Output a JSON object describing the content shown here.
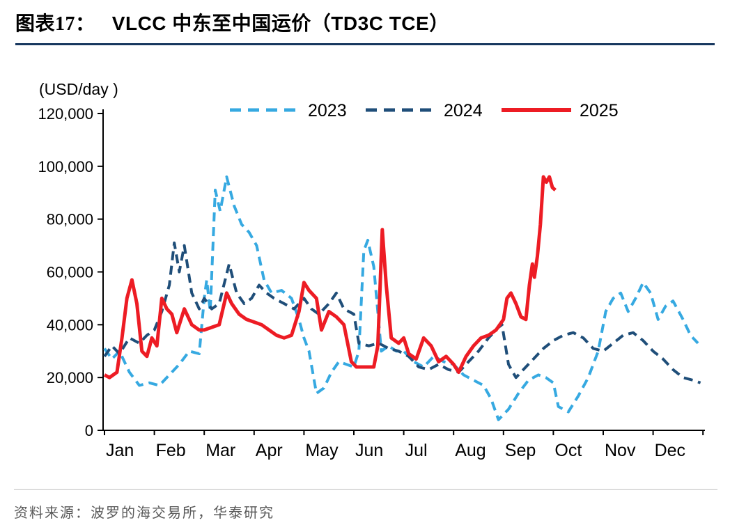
{
  "header": {
    "figure_label": "图表17：",
    "title": "VLCC 中东至中国运价（TD3C TCE）",
    "rule_color": "#17375E"
  },
  "chart_data": {
    "type": "line",
    "title": "VLCC 中东至中国运价（TD3C TCE）",
    "unit_label": "(USD/day )",
    "xlabel": "",
    "ylabel": "(USD/day )",
    "grid": false,
    "legend_position": "top",
    "x_unit": "fractional month, 0 = Jan 1, 12 = Dec 31",
    "x_axis": {
      "labels": [
        "Jan",
        "Feb",
        "Mar",
        "Apr",
        "May",
        "Jun",
        "Jul",
        "Aug",
        "Sep",
        "Oct",
        "Nov",
        "Dec"
      ],
      "range": [
        0,
        12
      ]
    },
    "y_axis": {
      "min": 0,
      "max": 120000,
      "tick_step": 20000,
      "tick_labels": [
        "0",
        "20,000",
        "40,000",
        "60,000",
        "80,000",
        "100,000",
        "120,000"
      ]
    },
    "series": [
      {
        "name": "2023",
        "color": "#36A9E1",
        "style": "dashed",
        "points": [
          [
            0,
            31000
          ],
          [
            0.15,
            27000
          ],
          [
            0.3,
            30000
          ],
          [
            0.5,
            22000
          ],
          [
            0.7,
            17000
          ],
          [
            0.9,
            18000
          ],
          [
            1.1,
            17000
          ],
          [
            1.3,
            21000
          ],
          [
            1.5,
            25000
          ],
          [
            1.7,
            30000
          ],
          [
            1.9,
            29000
          ],
          [
            2.0,
            50000
          ],
          [
            2.05,
            57000
          ],
          [
            2.12,
            45000
          ],
          [
            2.22,
            91000
          ],
          [
            2.32,
            83000
          ],
          [
            2.45,
            96000
          ],
          [
            2.6,
            85000
          ],
          [
            2.75,
            78000
          ],
          [
            2.9,
            75000
          ],
          [
            3.05,
            70000
          ],
          [
            3.2,
            57000
          ],
          [
            3.35,
            52000
          ],
          [
            3.55,
            53000
          ],
          [
            3.75,
            50000
          ],
          [
            3.9,
            42000
          ],
          [
            4.0,
            35000
          ],
          [
            4.1,
            30000
          ],
          [
            4.25,
            14000
          ],
          [
            4.4,
            16000
          ],
          [
            4.55,
            22000
          ],
          [
            4.7,
            26000
          ],
          [
            4.85,
            25000
          ],
          [
            5.0,
            24000
          ],
          [
            5.1,
            30000
          ],
          [
            5.2,
            68000
          ],
          [
            5.28,
            72000
          ],
          [
            5.4,
            62000
          ],
          [
            5.55,
            30000
          ],
          [
            5.7,
            32000
          ],
          [
            5.85,
            30000
          ],
          [
            6.0,
            30000
          ],
          [
            6.2,
            26000
          ],
          [
            6.4,
            24000
          ],
          [
            6.6,
            28000
          ],
          [
            6.8,
            26000
          ],
          [
            7.0,
            25000
          ],
          [
            7.2,
            21000
          ],
          [
            7.4,
            19000
          ],
          [
            7.6,
            17000
          ],
          [
            7.75,
            12000
          ],
          [
            7.9,
            4000
          ],
          [
            8.1,
            8000
          ],
          [
            8.3,
            14000
          ],
          [
            8.5,
            19000
          ],
          [
            8.7,
            21000
          ],
          [
            8.85,
            20000
          ],
          [
            9.0,
            18000
          ],
          [
            9.1,
            9000
          ],
          [
            9.3,
            7000
          ],
          [
            9.5,
            13000
          ],
          [
            9.7,
            20000
          ],
          [
            9.9,
            30000
          ],
          [
            10.05,
            45000
          ],
          [
            10.2,
            50000
          ],
          [
            10.35,
            52000
          ],
          [
            10.5,
            45000
          ],
          [
            10.65,
            50000
          ],
          [
            10.8,
            56000
          ],
          [
            10.95,
            52000
          ],
          [
            11.1,
            42000
          ],
          [
            11.25,
            47000
          ],
          [
            11.4,
            49000
          ],
          [
            11.6,
            42000
          ],
          [
            11.75,
            36000
          ],
          [
            11.9,
            33000
          ]
        ]
      },
      {
        "name": "2024",
        "color": "#1F4E79",
        "style": "dashed",
        "points": [
          [
            0,
            28000
          ],
          [
            0.15,
            32000
          ],
          [
            0.3,
            29000
          ],
          [
            0.5,
            35000
          ],
          [
            0.7,
            33000
          ],
          [
            0.85,
            36000
          ],
          [
            1.0,
            38000
          ],
          [
            1.15,
            45000
          ],
          [
            1.3,
            55000
          ],
          [
            1.4,
            71000
          ],
          [
            1.5,
            60000
          ],
          [
            1.6,
            70000
          ],
          [
            1.75,
            52000
          ],
          [
            1.9,
            46000
          ],
          [
            2.0,
            50000
          ],
          [
            2.15,
            46000
          ],
          [
            2.3,
            48000
          ],
          [
            2.5,
            63000
          ],
          [
            2.65,
            52000
          ],
          [
            2.8,
            48000
          ],
          [
            2.95,
            50000
          ],
          [
            3.1,
            55000
          ],
          [
            3.25,
            52000
          ],
          [
            3.4,
            50000
          ],
          [
            3.6,
            48000
          ],
          [
            3.8,
            46000
          ],
          [
            4.0,
            50000
          ],
          [
            4.15,
            46000
          ],
          [
            4.3,
            44000
          ],
          [
            4.5,
            48000
          ],
          [
            4.65,
            52000
          ],
          [
            4.8,
            46000
          ],
          [
            5.0,
            44000
          ],
          [
            5.1,
            33000
          ],
          [
            5.3,
            32000
          ],
          [
            5.5,
            33000
          ],
          [
            5.7,
            31000
          ],
          [
            5.9,
            30000
          ],
          [
            6.1,
            28000
          ],
          [
            6.3,
            24000
          ],
          [
            6.5,
            23000
          ],
          [
            6.7,
            25000
          ],
          [
            6.9,
            23000
          ],
          [
            7.1,
            22000
          ],
          [
            7.3,
            26000
          ],
          [
            7.5,
            30000
          ],
          [
            7.7,
            35000
          ],
          [
            7.9,
            39000
          ],
          [
            7.97,
            40000
          ],
          [
            8.1,
            25000
          ],
          [
            8.25,
            20000
          ],
          [
            8.4,
            23000
          ],
          [
            8.6,
            27000
          ],
          [
            8.8,
            31000
          ],
          [
            9.0,
            34000
          ],
          [
            9.2,
            36000
          ],
          [
            9.4,
            37000
          ],
          [
            9.6,
            35000
          ],
          [
            9.8,
            31000
          ],
          [
            10.0,
            30000
          ],
          [
            10.2,
            33000
          ],
          [
            10.4,
            36000
          ],
          [
            10.6,
            37000
          ],
          [
            10.8,
            34000
          ],
          [
            11.0,
            30000
          ],
          [
            11.2,
            27000
          ],
          [
            11.4,
            23000
          ],
          [
            11.6,
            20000
          ],
          [
            11.8,
            19000
          ],
          [
            11.95,
            18000
          ]
        ]
      },
      {
        "name": "2025",
        "color": "#ED1C24",
        "style": "solid",
        "points": [
          [
            0,
            21000
          ],
          [
            0.1,
            20000
          ],
          [
            0.25,
            22000
          ],
          [
            0.35,
            35000
          ],
          [
            0.45,
            50000
          ],
          [
            0.55,
            57000
          ],
          [
            0.65,
            48000
          ],
          [
            0.75,
            30000
          ],
          [
            0.85,
            28000
          ],
          [
            0.95,
            35000
          ],
          [
            1.05,
            32000
          ],
          [
            1.15,
            50000
          ],
          [
            1.25,
            46000
          ],
          [
            1.35,
            44000
          ],
          [
            1.45,
            37000
          ],
          [
            1.6,
            46000
          ],
          [
            1.75,
            40000
          ],
          [
            1.9,
            38000
          ],
          [
            2.0,
            38000
          ],
          [
            2.15,
            39000
          ],
          [
            2.3,
            40000
          ],
          [
            2.45,
            52000
          ],
          [
            2.55,
            48000
          ],
          [
            2.7,
            44000
          ],
          [
            2.85,
            42000
          ],
          [
            3.0,
            41000
          ],
          [
            3.15,
            40000
          ],
          [
            3.3,
            38000
          ],
          [
            3.45,
            36000
          ],
          [
            3.6,
            35000
          ],
          [
            3.75,
            36000
          ],
          [
            3.9,
            45000
          ],
          [
            4.0,
            56000
          ],
          [
            4.1,
            53000
          ],
          [
            4.25,
            50000
          ],
          [
            4.35,
            38000
          ],
          [
            4.5,
            45000
          ],
          [
            4.65,
            43000
          ],
          [
            4.8,
            40000
          ],
          [
            4.95,
            26000
          ],
          [
            5.05,
            24000
          ],
          [
            5.2,
            24000
          ],
          [
            5.4,
            24000
          ],
          [
            5.48,
            32000
          ],
          [
            5.57,
            76000
          ],
          [
            5.65,
            55000
          ],
          [
            5.75,
            35000
          ],
          [
            5.9,
            33000
          ],
          [
            6.0,
            35000
          ],
          [
            6.1,
            29000
          ],
          [
            6.25,
            27000
          ],
          [
            6.4,
            35000
          ],
          [
            6.55,
            32000
          ],
          [
            6.7,
            26000
          ],
          [
            6.85,
            28000
          ],
          [
            7.0,
            25000
          ],
          [
            7.1,
            22000
          ],
          [
            7.25,
            28000
          ],
          [
            7.4,
            32000
          ],
          [
            7.55,
            35000
          ],
          [
            7.7,
            36000
          ],
          [
            7.85,
            38000
          ],
          [
            8.0,
            42000
          ],
          [
            8.07,
            50000
          ],
          [
            8.15,
            52000
          ],
          [
            8.25,
            48000
          ],
          [
            8.35,
            43000
          ],
          [
            8.45,
            42000
          ],
          [
            8.52,
            55000
          ],
          [
            8.58,
            63000
          ],
          [
            8.62,
            58000
          ],
          [
            8.68,
            66000
          ],
          [
            8.74,
            78000
          ],
          [
            8.8,
            96000
          ],
          [
            8.86,
            94000
          ],
          [
            8.92,
            96000
          ],
          [
            8.98,
            92000
          ],
          [
            9.04,
            91000
          ]
        ]
      }
    ]
  },
  "footer": {
    "source": "资料来源：波罗的海交易所，华泰研究"
  }
}
